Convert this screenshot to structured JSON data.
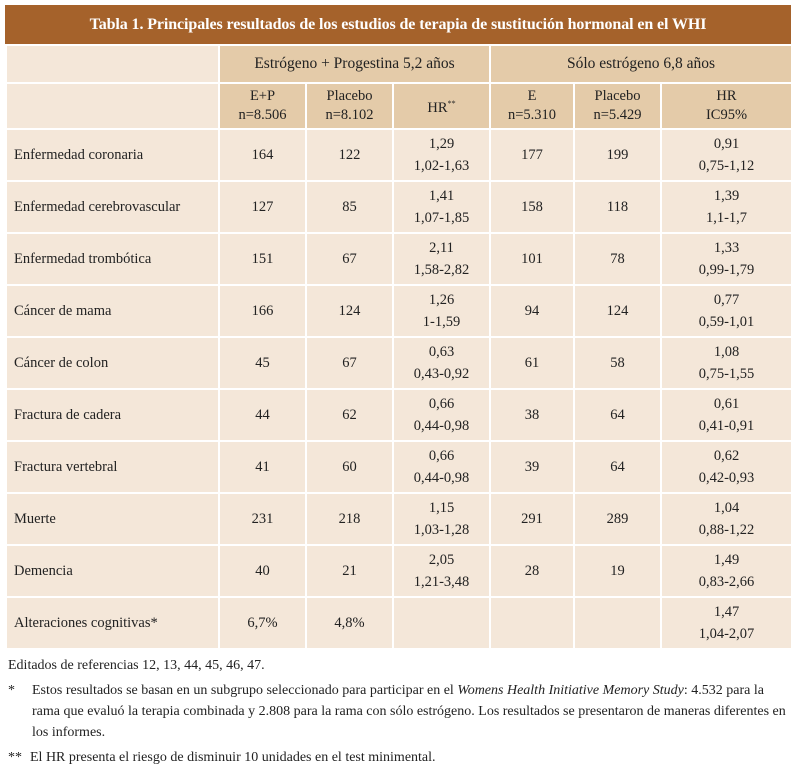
{
  "title": "Tabla 1. Principales resultados de los estudios de terapia de sustitución hormonal en el WHI",
  "groups": [
    "Estrógeno + Progestina 5,2 años",
    "Sólo estrógeno 6,8 años"
  ],
  "subheaders": [
    {
      "l1": "E+P",
      "l2": "n=8.506"
    },
    {
      "l1": "Placebo",
      "l2": "n=8.102"
    },
    {
      "l1": "HR",
      "l2": "",
      "sup": "**"
    },
    {
      "l1": "E",
      "l2": "n=5.310"
    },
    {
      "l1": "Placebo",
      "l2": "n=5.429"
    },
    {
      "l1": "HR",
      "l2": "IC95%"
    }
  ],
  "rows": [
    {
      "label": "Enfermedad coronaria",
      "ep": "164",
      "p1": "122",
      "hr1": "1,29",
      "ci1": "1,02-1,63",
      "e": "177",
      "p2": "199",
      "hr2": "0,91",
      "ci2": "0,75-1,12"
    },
    {
      "label": "Enfermedad cerebrovascular",
      "ep": "127",
      "p1": "85",
      "hr1": "1,41",
      "ci1": "1,07-1,85",
      "e": "158",
      "p2": "118",
      "hr2": "1,39",
      "ci2": "1,1-1,7"
    },
    {
      "label": "Enfermedad trombótica",
      "ep": "151",
      "p1": "67",
      "hr1": "2,11",
      "ci1": "1,58-2,82",
      "e": "101",
      "p2": "78",
      "hr2": "1,33",
      "ci2": "0,99-1,79"
    },
    {
      "label": "Cáncer de mama",
      "ep": "166",
      "p1": "124",
      "hr1": "1,26",
      "ci1": "1-1,59",
      "e": "94",
      "p2": "124",
      "hr2": "0,77",
      "ci2": "0,59-1,01"
    },
    {
      "label": "Cáncer de colon",
      "ep": "45",
      "p1": "67",
      "hr1": "0,63",
      "ci1": "0,43-0,92",
      "e": "61",
      "p2": "58",
      "hr2": "1,08",
      "ci2": "0,75-1,55"
    },
    {
      "label": "Fractura de cadera",
      "ep": "44",
      "p1": "62",
      "hr1": "0,66",
      "ci1": "0,44-0,98",
      "e": "38",
      "p2": "64",
      "hr2": "0,61",
      "ci2": "0,41-0,91"
    },
    {
      "label": "Fractura vertebral",
      "ep": "41",
      "p1": "60",
      "hr1": "0,66",
      "ci1": "0,44-0,98",
      "e": "39",
      "p2": "64",
      "hr2": "0,62",
      "ci2": "0,42-0,93"
    },
    {
      "label": "Muerte",
      "ep": "231",
      "p1": "218",
      "hr1": "1,15",
      "ci1": "1,03-1,28",
      "e": "291",
      "p2": "289",
      "hr2": "1,04",
      "ci2": "0,88-1,22"
    },
    {
      "label": "Demencia",
      "ep": "40",
      "p1": "21",
      "hr1": "2,05",
      "ci1": "1,21-3,48",
      "e": "28",
      "p2": "19",
      "hr2": "1,49",
      "ci2": "0,83-2,66"
    },
    {
      "label": "Alteraciones cognitivas*",
      "ep": "6,7%",
      "p1": "4,8%",
      "hr1": "",
      "ci1": "",
      "e": "",
      "p2": "",
      "hr2": "1,47",
      "ci2": "1,04-2,07"
    }
  ],
  "notes": {
    "source": "Editados de referencias 12, 13, 44, 45, 46, 47.",
    "fn1_mark": "*",
    "fn1_a": "Estos resultados se basan en un subgrupo seleccionado para participar en el ",
    "fn1_italic": "Womens Health Initiative Memory Study",
    "fn1_b": ": 4.532 para la rama que evaluó la terapia combinada y 2.808 para la rama con sólo estrógeno. Los resultados se presentaron de maneras diferentes en los informes.",
    "fn2_mark": "**",
    "fn2": "El HR presenta el riesgo de disminuir 10 unidades en el test minimental."
  }
}
